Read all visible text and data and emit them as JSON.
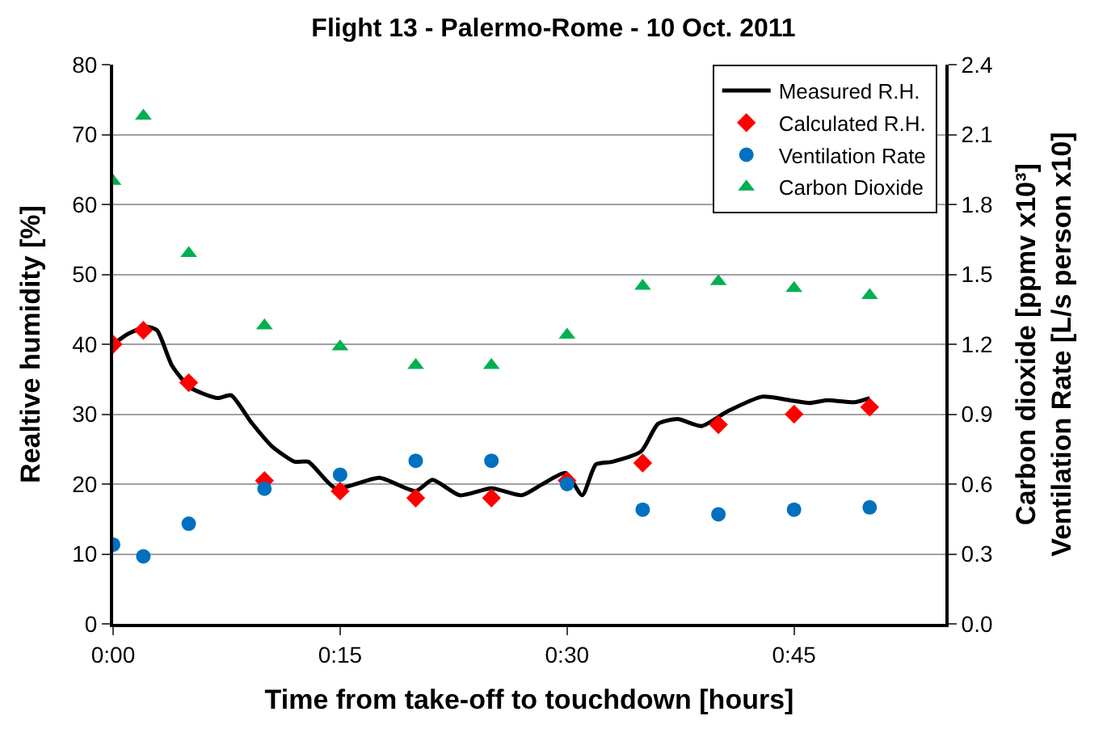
{
  "chart_data": {
    "type": "scatter",
    "title": "Flight 13 - Palermo-Rome - 10 Oct. 2011",
    "xlabel": "Time from take-off to touchdown [hours]",
    "ylabel": "Realtive humidity [%]",
    "y2label": "Carbon dioxide [ppmv x10³]\nVentilation Rate [L/s person x10]",
    "xlim": [
      0,
      0.9167
    ],
    "xticks": [
      {
        "value": 0,
        "label": "0:00"
      },
      {
        "value": 0.25,
        "label": "0:15"
      },
      {
        "value": 0.5,
        "label": "0:30"
      },
      {
        "value": 0.75,
        "label": "0:45"
      }
    ],
    "ylim": [
      0,
      80
    ],
    "yticks": [
      0,
      10,
      20,
      30,
      40,
      50,
      60,
      70,
      80
    ],
    "y2lim": [
      0,
      2.4
    ],
    "y2ticks": [
      {
        "value": 0,
        "label": "0.0"
      },
      {
        "value": 0.3,
        "label": "0.3"
      },
      {
        "value": 0.6,
        "label": "0.6"
      },
      {
        "value": 0.9,
        "label": "0.9"
      },
      {
        "value": 1.2,
        "label": "1.2"
      },
      {
        "value": 1.5,
        "label": "1.5"
      },
      {
        "value": 1.8,
        "label": "1.8"
      },
      {
        "value": 2.1,
        "label": "2.1"
      },
      {
        "value": 2.4,
        "label": "2.4"
      }
    ],
    "grid": "y",
    "legend": "top right",
    "series": [
      {
        "name": "Measured R.H.",
        "type": "line",
        "color": "#000000",
        "marker": "none",
        "line_style": "solid",
        "x": [
          0,
          0.0167,
          0.0367,
          0.0483,
          0.065,
          0.085,
          0.115,
          0.13,
          0.1517,
          0.175,
          0.2,
          0.215,
          0.245,
          0.2933,
          0.3333,
          0.3517,
          0.3817,
          0.4167,
          0.45,
          0.4717,
          0.4983,
          0.5167,
          0.5317,
          0.55,
          0.5817,
          0.6,
          0.6217,
          0.6483,
          0.6767,
          0.715,
          0.745,
          0.7667,
          0.7867,
          0.8167,
          0.8333
        ],
        "values": [
          40,
          41.5,
          42.5,
          42,
          36.9,
          33.8,
          32.3,
          32.7,
          28.9,
          25.4,
          23.2,
          23.2,
          19.4,
          20.9,
          19,
          20.6,
          18.4,
          19.4,
          18.4,
          19.9,
          21.6,
          18.4,
          22.8,
          23.2,
          24.7,
          28.6,
          29.3,
          28.3,
          30.4,
          32.5,
          32,
          31.6,
          32,
          31.7,
          32.3
        ]
      },
      {
        "name": "Calculated R.H.",
        "color": "#ff0000",
        "marker": "diamond",
        "x": [
          0,
          0.0333,
          0.0833,
          0.1667,
          0.25,
          0.3333,
          0.4167,
          0.5,
          0.5833,
          0.6667,
          0.75,
          0.8333
        ],
        "values": [
          40,
          42,
          34.5,
          20.5,
          19,
          18,
          18,
          20.5,
          23,
          28.5,
          30,
          31
        ]
      },
      {
        "name": "Ventilation Rate",
        "axis": "y2",
        "color": "#0070c0",
        "marker": "circle",
        "x": [
          0,
          0.0333,
          0.0833,
          0.1667,
          0.25,
          0.3333,
          0.4167,
          0.5,
          0.5833,
          0.6667,
          0.75,
          0.8333
        ],
        "values": [
          0.34,
          0.29,
          0.43,
          0.58,
          0.64,
          0.7,
          0.7,
          0.6,
          0.49,
          0.47,
          0.49,
          0.5
        ]
      },
      {
        "name": "Carbon Dioxide",
        "axis": "y2",
        "color": "#00b050",
        "marker": "triangle",
        "x": [
          0,
          0.0333,
          0.0833,
          0.1667,
          0.25,
          0.3333,
          0.4167,
          0.5,
          0.5833,
          0.6667,
          0.75,
          0.8333
        ],
        "values": [
          1.9,
          2.18,
          1.59,
          1.28,
          1.19,
          1.11,
          1.11,
          1.24,
          1.45,
          1.47,
          1.44,
          1.41
        ]
      }
    ]
  }
}
